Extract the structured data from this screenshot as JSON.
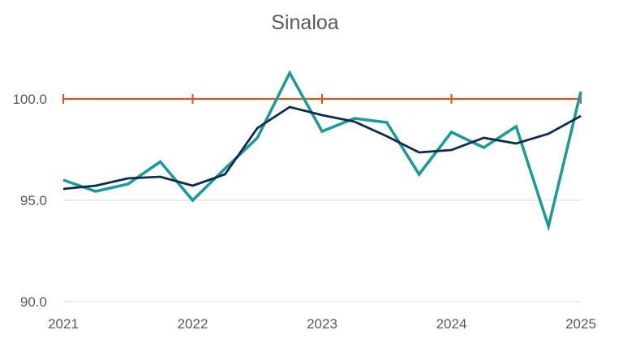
{
  "chart_data": {
    "type": "line",
    "title": "Sinaloa",
    "xlabel": "",
    "ylabel": "",
    "x_ticks": [
      "2021",
      "2022",
      "2023",
      "2024",
      "2025"
    ],
    "y_ticks": [
      "90.0",
      "95.0",
      "100.0"
    ],
    "ylim": [
      90,
      102
    ],
    "xlim": [
      2021,
      2025
    ],
    "grid": "horizontal",
    "x": [
      2021.0,
      2021.25,
      2021.5,
      2021.75,
      2022.0,
      2022.25,
      2022.5,
      2022.75,
      2023.0,
      2023.25,
      2023.5,
      2023.75,
      2024.0,
      2024.25,
      2024.5,
      2024.75,
      2025.0
    ],
    "series": [
      {
        "color": "#1a9a9a",
        "values": [
          96.0,
          95.44,
          95.8,
          96.9,
          95.0,
          96.56,
          98.08,
          101.28,
          98.4,
          99.04,
          98.84,
          96.28,
          98.36,
          97.6,
          98.64,
          93.72,
          100.36
        ]
      },
      {
        "color": "#0e2a4d",
        "values": [
          95.56,
          95.72,
          96.08,
          96.16,
          95.72,
          96.28,
          98.56,
          99.6,
          99.2,
          98.88,
          98.16,
          97.36,
          97.48,
          98.08,
          97.8,
          98.28,
          99.16
        ]
      },
      {
        "color": "#d4581f",
        "values": [
          100,
          100,
          100,
          100,
          100,
          100,
          100,
          100,
          100,
          100,
          100,
          100,
          100,
          100,
          100,
          100,
          100
        ],
        "markers_at_years": true
      }
    ]
  }
}
